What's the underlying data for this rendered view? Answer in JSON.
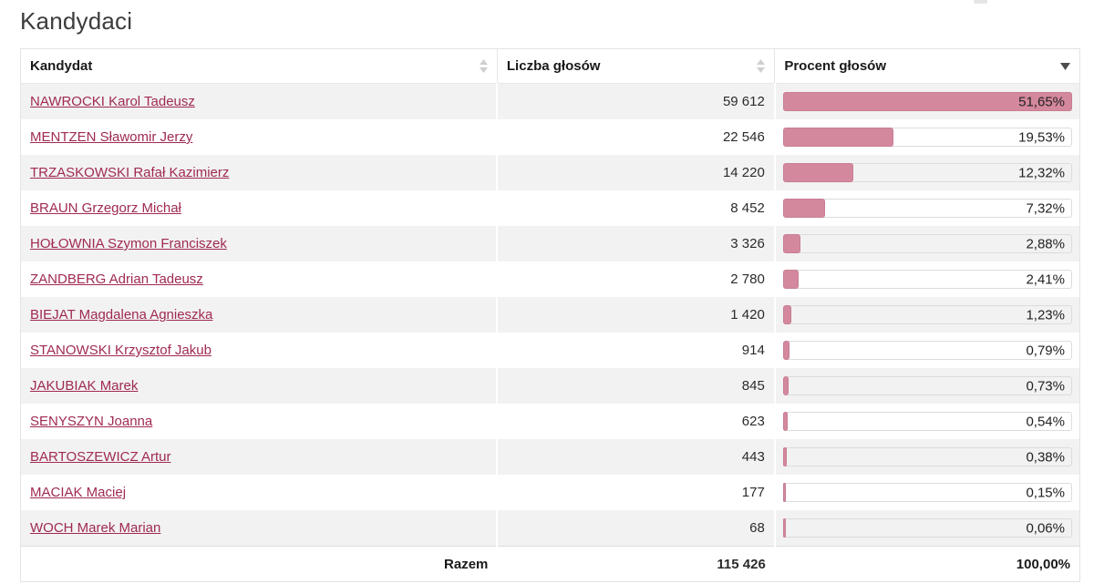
{
  "page": {
    "title": "Kandydaci"
  },
  "colors": {
    "bar_fill": "#d4889d",
    "bar_fill_border": "#c87e93",
    "link": "#a02a52",
    "row_alt": "#f2f2f2",
    "table_border": "#e3e3e3"
  },
  "table": {
    "columns": [
      {
        "label": "Kandydat",
        "sort": "none"
      },
      {
        "label": "Liczba głosów",
        "sort": "none"
      },
      {
        "label": "Procent głosów",
        "sort": "desc"
      }
    ],
    "max_percent": 51.65,
    "rows": [
      {
        "name": "NAWROCKI Karol Tadeusz",
        "votes": "59 612",
        "percent": 51.65,
        "percent_label": "51,65%"
      },
      {
        "name": "MENTZEN Sławomir Jerzy",
        "votes": "22 546",
        "percent": 19.53,
        "percent_label": "19,53%"
      },
      {
        "name": "TRZASKOWSKI Rafał Kazimierz",
        "votes": "14 220",
        "percent": 12.32,
        "percent_label": "12,32%"
      },
      {
        "name": "BRAUN Grzegorz Michał",
        "votes": "8 452",
        "percent": 7.32,
        "percent_label": "7,32%"
      },
      {
        "name": "HOŁOWNIA Szymon Franciszek",
        "votes": "3 326",
        "percent": 2.88,
        "percent_label": "2,88%"
      },
      {
        "name": "ZANDBERG Adrian Tadeusz",
        "votes": "2 780",
        "percent": 2.41,
        "percent_label": "2,41%"
      },
      {
        "name": "BIEJAT Magdalena Agnieszka",
        "votes": "1 420",
        "percent": 1.23,
        "percent_label": "1,23%"
      },
      {
        "name": "STANOWSKI Krzysztof Jakub",
        "votes": "914",
        "percent": 0.79,
        "percent_label": "0,79%"
      },
      {
        "name": "JAKUBIAK Marek",
        "votes": "845",
        "percent": 0.73,
        "percent_label": "0,73%"
      },
      {
        "name": "SENYSZYN Joanna",
        "votes": "623",
        "percent": 0.54,
        "percent_label": "0,54%"
      },
      {
        "name": "BARTOSZEWICZ Artur",
        "votes": "443",
        "percent": 0.38,
        "percent_label": "0,38%"
      },
      {
        "name": "MACIAK Maciej",
        "votes": "177",
        "percent": 0.15,
        "percent_label": "0,15%"
      },
      {
        "name": "WOCH Marek Marian",
        "votes": "68",
        "percent": 0.06,
        "percent_label": "0,06%"
      }
    ],
    "footer": {
      "label": "Razem",
      "votes": "115 426",
      "percent_label": "100,00%"
    }
  }
}
